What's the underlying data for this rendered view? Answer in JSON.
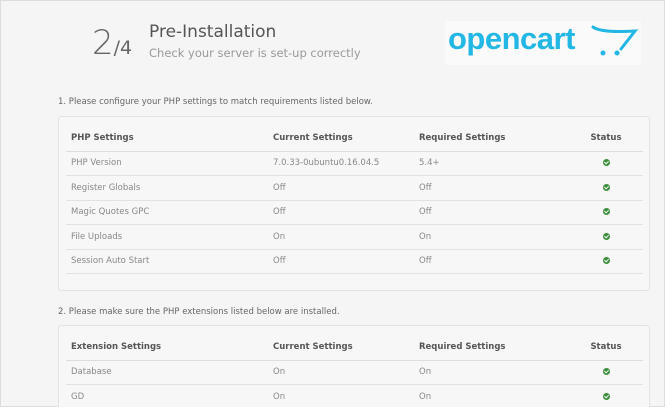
{
  "header": {
    "step_current": "2",
    "step_total": "/4",
    "title": "Pre-Installation",
    "subtitle": "Check your server is set-up correctly",
    "logo_text": "opencart",
    "brand_color": "#23b7e5"
  },
  "section1": {
    "instruction": "1. Please configure your PHP settings to match requirements listed below.",
    "columns": [
      "PHP Settings",
      "Current Settings",
      "Required Settings",
      "Status"
    ],
    "rows": [
      {
        "name": "PHP Version",
        "current": "7.0.33-0ubuntu0.16.04.5",
        "required": "5.4+",
        "status": "check-icon"
      },
      {
        "name": "Register Globals",
        "current": "Off",
        "required": "Off",
        "status": "check-icon"
      },
      {
        "name": "Magic Quotes GPC",
        "current": "Off",
        "required": "Off",
        "status": "check-icon"
      },
      {
        "name": "File Uploads",
        "current": "On",
        "required": "On",
        "status": "check-icon"
      },
      {
        "name": "Session Auto Start",
        "current": "Off",
        "required": "Off",
        "status": "check-icon"
      }
    ]
  },
  "section2": {
    "instruction": "2. Please make sure the PHP extensions listed below are installed.",
    "columns": [
      "Extension Settings",
      "Current Settings",
      "Required Settings",
      "Status"
    ],
    "rows": [
      {
        "name": "Database",
        "current": "On",
        "required": "On",
        "status": "check-icon"
      },
      {
        "name": "GD",
        "current": "On",
        "required": "On",
        "status": "check-icon"
      }
    ]
  },
  "status_color": "#3c8d3c"
}
